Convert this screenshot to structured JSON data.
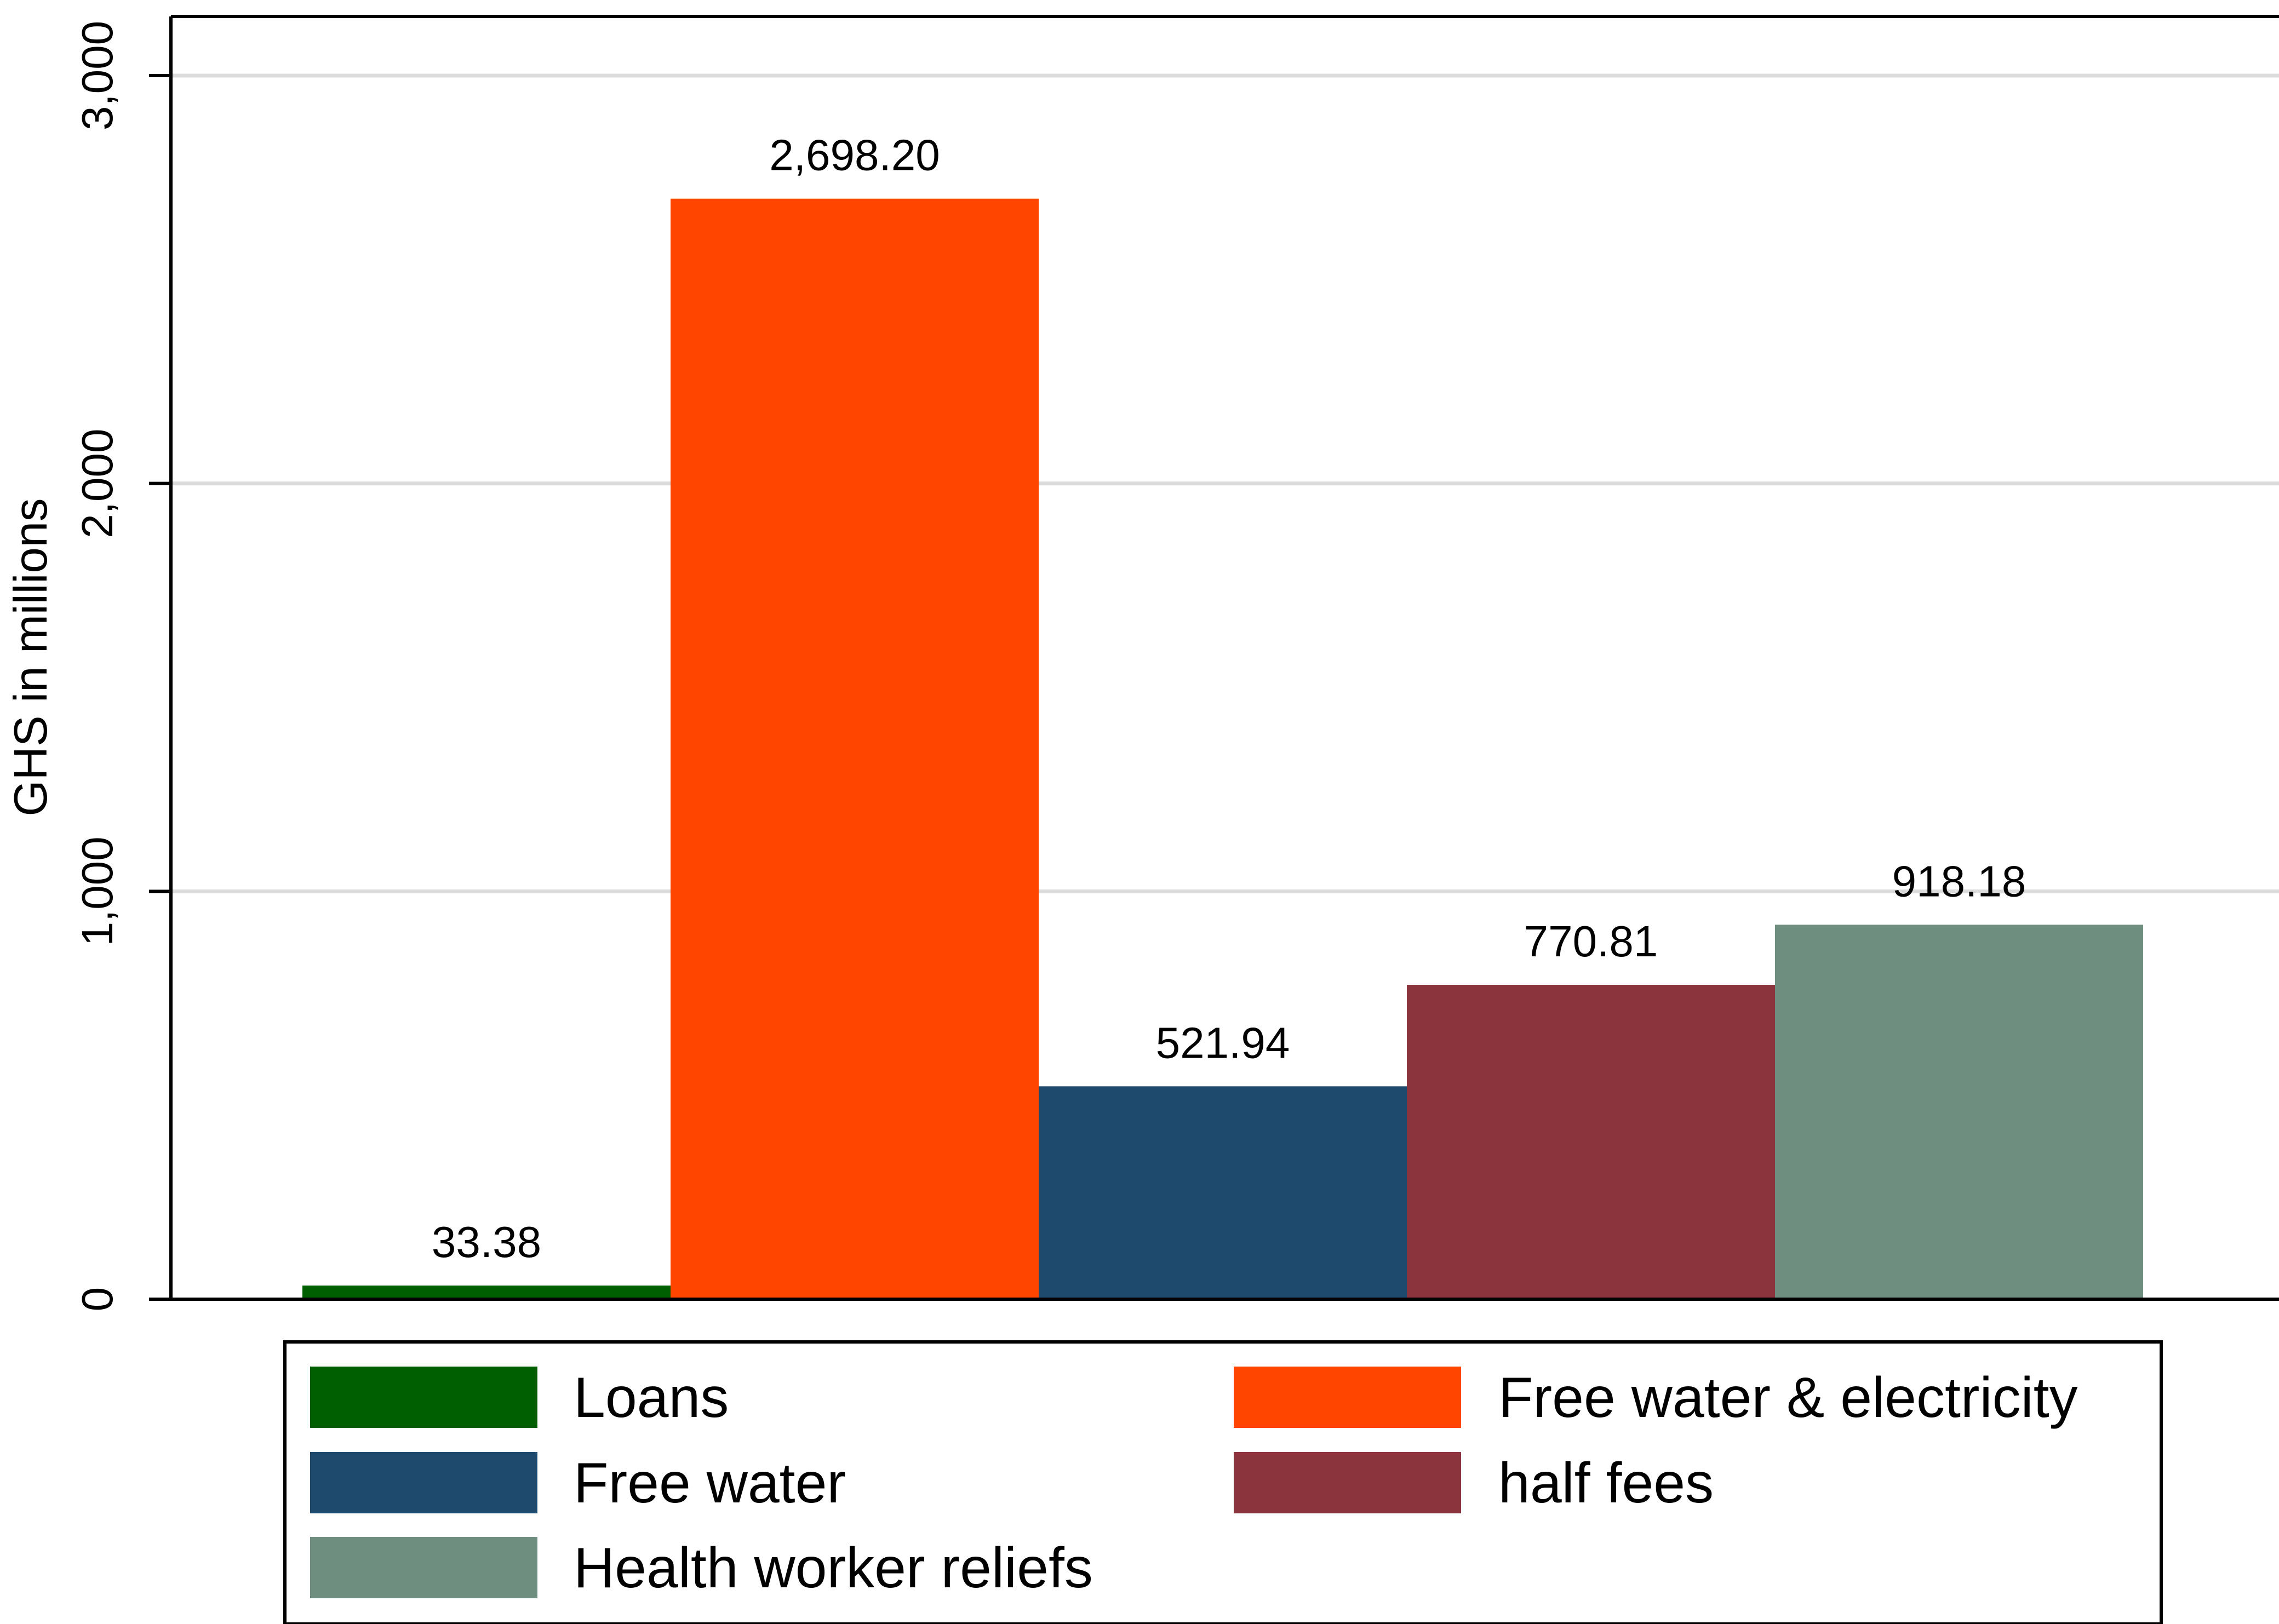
{
  "chart_data": {
    "type": "bar",
    "title": "",
    "xlabel": "",
    "ylabel": "GHS in millions",
    "ylim": [
      0,
      3000
    ],
    "yticks": [
      0,
      1000,
      2000,
      3000
    ],
    "ytick_labels": [
      "0",
      "1,000",
      "2,000",
      "3,000"
    ],
    "grid": true,
    "legend_placement": "bottom",
    "series": [
      {
        "name": "Loans",
        "value": 33.38,
        "label": "33.38",
        "color": "#006000"
      },
      {
        "name": "Free water & electricity",
        "value": 2698.2,
        "label": "2,698.20",
        "color": "#ff4500"
      },
      {
        "name": "Free water",
        "value": 521.94,
        "label": "521.94",
        "color": "#1e4a6e"
      },
      {
        "name": "half fees",
        "value": 770.81,
        "label": "770.81",
        "color": "#8b343d"
      },
      {
        "name": "Health worker reliefs",
        "value": 918.18,
        "label": "918.18",
        "color": "#6e8e80"
      }
    ]
  }
}
